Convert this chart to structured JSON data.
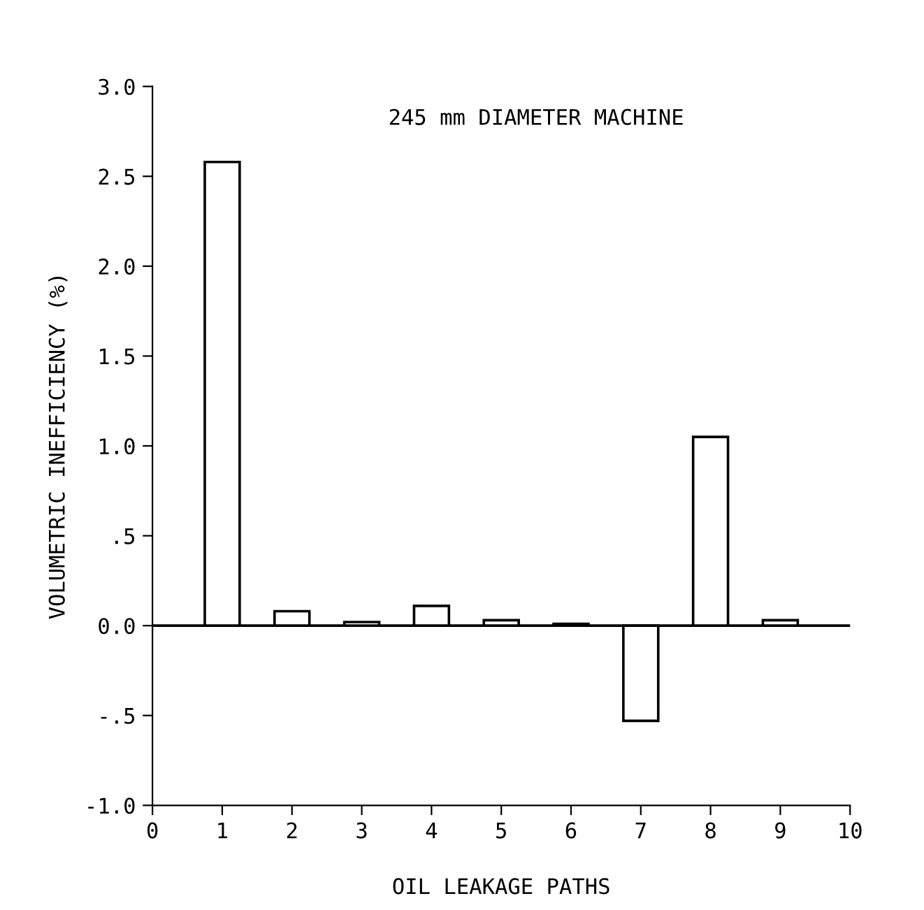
{
  "chart_data": {
    "type": "bar",
    "title": "245 mm DIAMETER MACHINE",
    "xlabel": "OIL LEAKAGE PATHS",
    "ylabel": "VOLUMETRIC INEFFICIENCY (%)",
    "x": [
      1,
      2,
      3,
      4,
      5,
      6,
      7,
      8,
      9
    ],
    "values": [
      2.58,
      0.08,
      0.02,
      0.11,
      0.03,
      0.01,
      -0.53,
      1.05,
      0.03
    ],
    "color": "#ffffff",
    "xlim": [
      0,
      10
    ],
    "xticks": [
      0,
      1,
      2,
      3,
      4,
      5,
      6,
      7,
      8,
      9,
      10
    ],
    "ylim": [
      -1.0,
      3.0
    ],
    "yticks": [
      {
        "value": -1.0,
        "label": "-1.0"
      },
      {
        "value": -0.5,
        "label": "-.5"
      },
      {
        "value": 0.0,
        "label": "0.0"
      },
      {
        "value": 0.5,
        "label": ".5"
      },
      {
        "value": 1.0,
        "label": "1.0"
      },
      {
        "value": 1.5,
        "label": "1.5"
      },
      {
        "value": 2.0,
        "label": "2.0"
      },
      {
        "value": 2.5,
        "label": "2.5"
      },
      {
        "value": 3.0,
        "label": "3.0"
      }
    ],
    "ref_lines": [
      {
        "axis": "y",
        "value": 0.0,
        "color": "#000000"
      }
    ],
    "grid": false,
    "legend": false
  }
}
